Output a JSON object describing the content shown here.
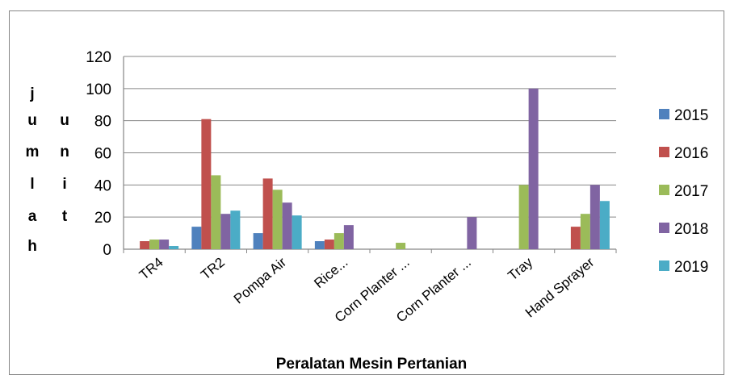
{
  "chart_data": {
    "type": "bar",
    "title": "",
    "xlabel": "Peralatan Mesin Pertanian",
    "ylabel_columns": [
      [
        "j",
        "u",
        "m",
        "l",
        "a",
        "h"
      ],
      [
        "u",
        "n",
        "i",
        "t"
      ]
    ],
    "categories": [
      "TR4",
      "TR2",
      "Pompa Air",
      "Rice...",
      "Corn Planter ...",
      "Corn Planter ...",
      "Tray",
      "Hand Sprayer"
    ],
    "ylim": [
      0,
      120
    ],
    "yticks": [
      0,
      20,
      40,
      60,
      80,
      100,
      120
    ],
    "grid": true,
    "legend_position": "right",
    "series": [
      {
        "name": "2015",
        "color": "#4F81BD",
        "values": [
          0,
          14,
          10,
          5,
          0,
          0,
          0,
          0
        ]
      },
      {
        "name": "2016",
        "color": "#C0504D",
        "values": [
          5,
          81,
          44,
          6,
          0,
          0,
          0,
          14
        ]
      },
      {
        "name": "2017",
        "color": "#9BBB59",
        "values": [
          6,
          46,
          37,
          10,
          4,
          0,
          40,
          22
        ]
      },
      {
        "name": "2018",
        "color": "#8064A2",
        "values": [
          6,
          22,
          29,
          15,
          0,
          20,
          100,
          40
        ]
      },
      {
        "name": "2019",
        "color": "#4BACC6",
        "values": [
          2,
          24,
          21,
          0,
          0,
          0,
          0,
          30
        ]
      }
    ]
  }
}
